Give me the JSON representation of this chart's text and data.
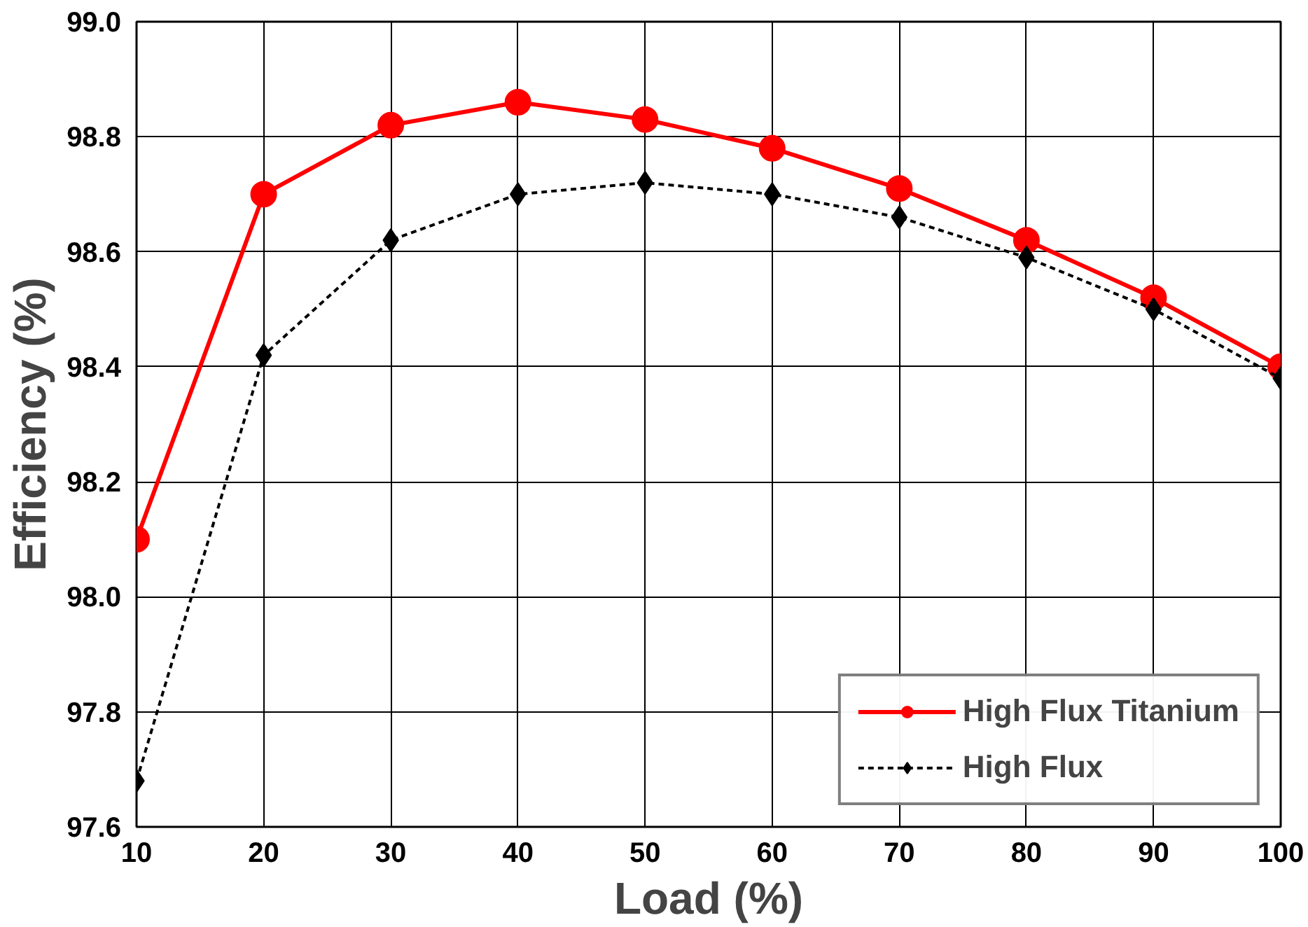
{
  "chart_data": {
    "type": "line",
    "xlabel": "Load (%)",
    "ylabel": "Efficiency (%)",
    "x": [
      10,
      20,
      30,
      40,
      50,
      60,
      70,
      80,
      90,
      100
    ],
    "series": [
      {
        "name": "High Flux Titanium",
        "color": "#ff0000",
        "marker": "circle",
        "line_style": "solid",
        "values": [
          98.1,
          98.7,
          98.82,
          98.86,
          98.83,
          98.78,
          98.71,
          98.62,
          98.52,
          98.4
        ]
      },
      {
        "name": "High Flux",
        "color": "#000000",
        "marker": "diamond",
        "line_style": "dashed",
        "values": [
          97.68,
          98.42,
          98.62,
          98.7,
          98.72,
          98.7,
          98.66,
          98.59,
          98.5,
          98.38
        ]
      }
    ],
    "xlim": [
      10,
      100
    ],
    "xticks": [
      10,
      20,
      30,
      40,
      50,
      60,
      70,
      80,
      90,
      100
    ],
    "ylim": [
      97.6,
      99.0
    ],
    "yticks": [
      {
        "value": 97.6,
        "label": "97.6"
      },
      {
        "value": 97.8,
        "label": "97.8"
      },
      {
        "value": 98.0,
        "label": "98.0"
      },
      {
        "value": 98.2,
        "label": "98.2"
      },
      {
        "value": 98.4,
        "label": "98.4"
      },
      {
        "value": 98.6,
        "label": "98.6"
      },
      {
        "value": 98.8,
        "label": "98.8"
      },
      {
        "value": 99.0,
        "label": "99.0"
      }
    ],
    "grid": true,
    "legend": "bottom right"
  }
}
